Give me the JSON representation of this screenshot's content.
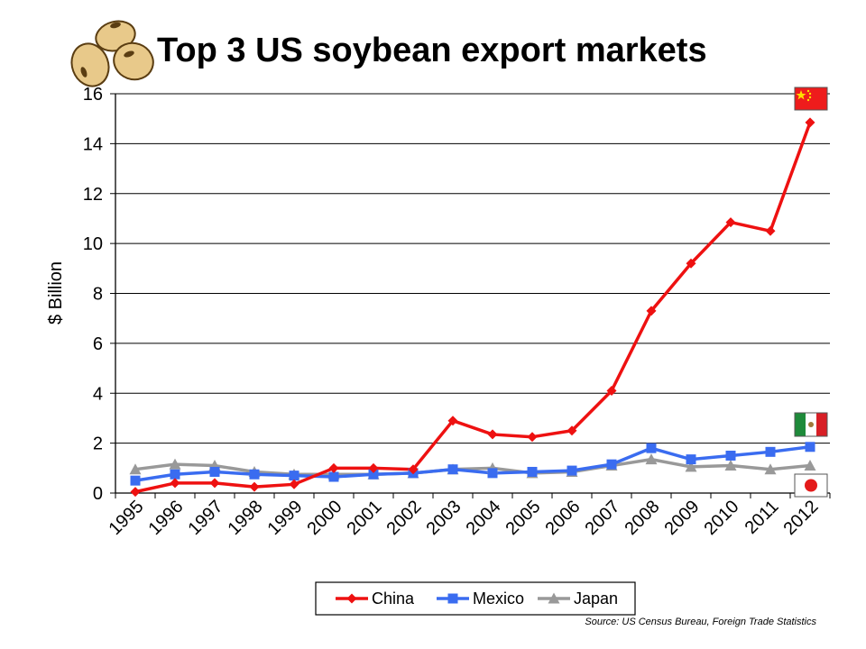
{
  "chart_data": {
    "type": "line",
    "title": "Top 3 US soybean export markets",
    "ylabel": "$ Billion",
    "xlabel": "",
    "ylim": [
      0,
      16
    ],
    "yticks": [
      0,
      2,
      4,
      6,
      8,
      10,
      12,
      14,
      16
    ],
    "grid": true,
    "legend_position": "bottom",
    "categories": [
      "1995",
      "1996",
      "1997",
      "1998",
      "1999",
      "2000",
      "2001",
      "2002",
      "2003",
      "2004",
      "2005",
      "2006",
      "2007",
      "2008",
      "2009",
      "2010",
      "2011",
      "2012"
    ],
    "series": [
      {
        "name": "China",
        "color": "#ee1111",
        "marker": "diamond",
        "values": [
          0.05,
          0.4,
          0.4,
          0.25,
          0.35,
          1.0,
          1.0,
          0.95,
          2.9,
          2.35,
          2.25,
          2.5,
          4.1,
          7.3,
          9.2,
          10.85,
          10.5,
          14.85
        ]
      },
      {
        "name": "Mexico",
        "color": "#3a6cf0",
        "marker": "square",
        "values": [
          0.5,
          0.75,
          0.85,
          0.75,
          0.7,
          0.65,
          0.75,
          0.8,
          0.95,
          0.8,
          0.85,
          0.9,
          1.15,
          1.8,
          1.35,
          1.5,
          1.65,
          1.85
        ]
      },
      {
        "name": "Japan",
        "color": "#999999",
        "marker": "triangle",
        "values": [
          0.95,
          1.15,
          1.1,
          0.85,
          0.75,
          0.75,
          0.75,
          0.8,
          0.95,
          1.0,
          0.8,
          0.85,
          1.1,
          1.35,
          1.05,
          1.1,
          0.95,
          1.1
        ]
      }
    ],
    "source": "Source: US Census Bureau, Foreign Trade Statistics"
  },
  "decorations": {
    "logo": "soybeans-icon",
    "flags": [
      "china-flag-icon",
      "mexico-flag-icon",
      "japan-flag-icon"
    ]
  }
}
